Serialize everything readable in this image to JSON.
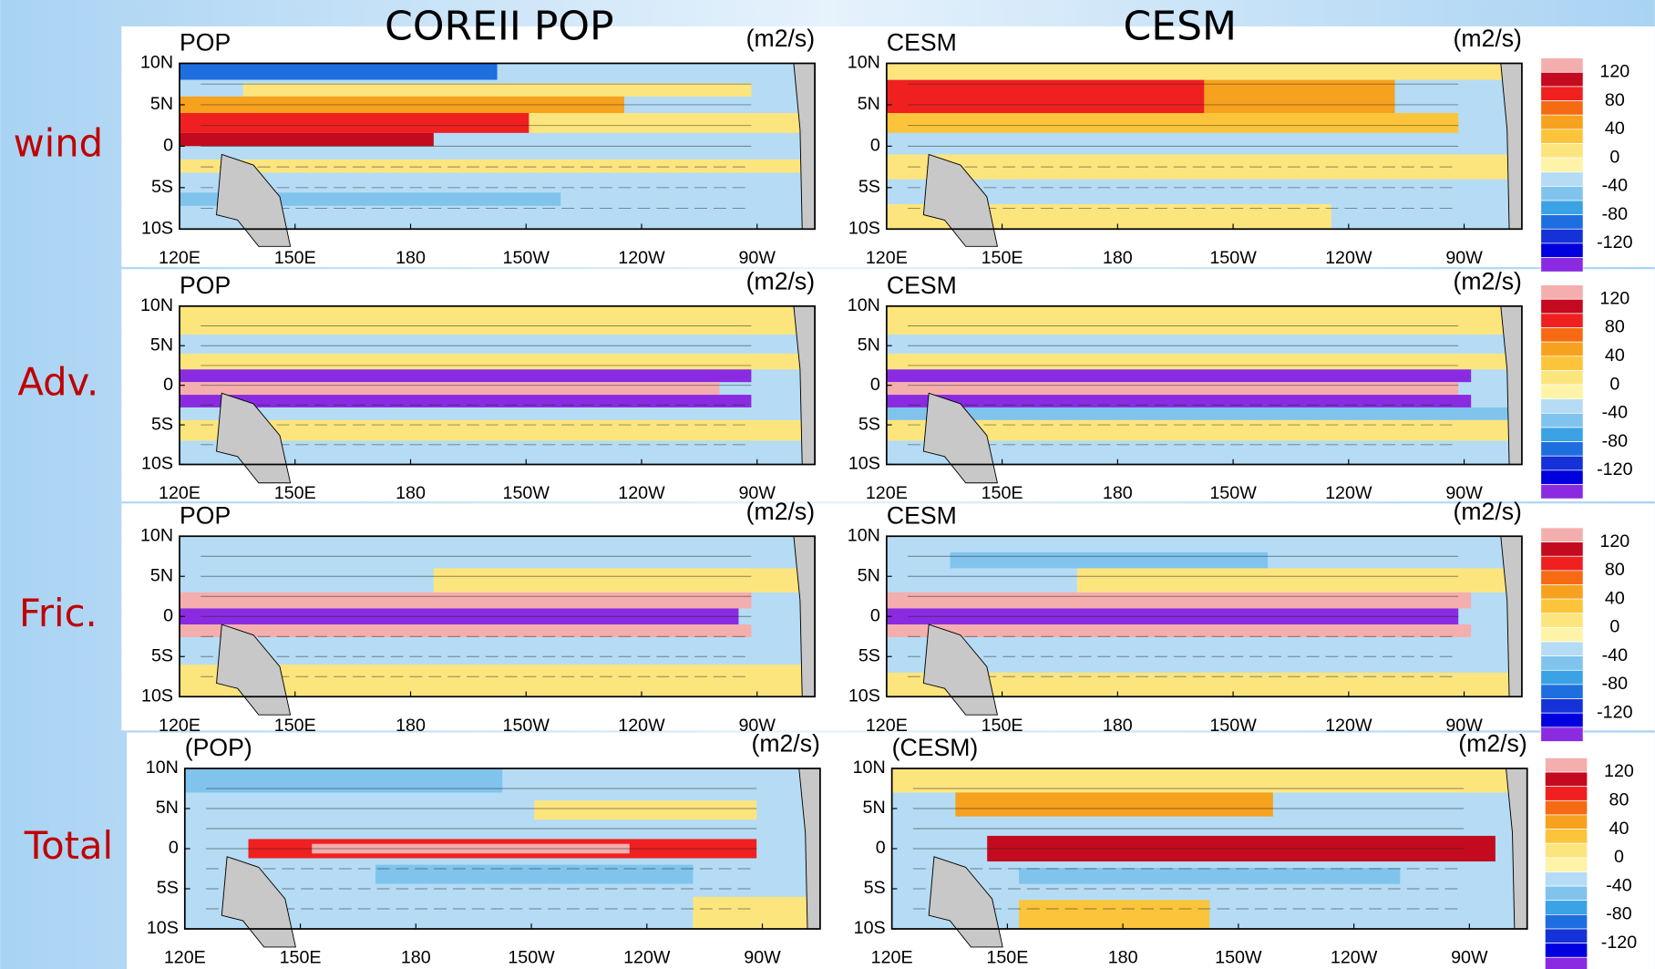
{
  "column_titles": [
    "COREII POP",
    "CESM"
  ],
  "rows": [
    {
      "label": "wind",
      "panels": [
        {
          "label": "POP",
          "units": "(m2/s)"
        },
        {
          "label": "CESM",
          "units": "(m2/s)"
        }
      ]
    },
    {
      "label": "Adv.",
      "panels": [
        {
          "label": "POP",
          "units": "(m2/s)"
        },
        {
          "label": "CESM",
          "units": "(m2/s)"
        }
      ]
    },
    {
      "label": "Fric.",
      "panels": [
        {
          "label": "POP",
          "units": "(m2/s)"
        },
        {
          "label": "CESM",
          "units": "(m2/s)"
        }
      ]
    },
    {
      "label": "Total",
      "panels": [
        {
          "label": "(POP)",
          "units": "(m2/s)"
        },
        {
          "label": "(CESM)",
          "units": "(m2/s)"
        }
      ]
    }
  ],
  "x_tick_labels": [
    "120E",
    "150E",
    "180",
    "150W",
    "120W",
    "90W"
  ],
  "y_tick_labels": [
    "10N",
    "5N",
    "0",
    "5S",
    "10S"
  ],
  "colorbar_labels": [
    "120",
    "80",
    "40",
    "0",
    "-40",
    "-80",
    "-120"
  ]
}
